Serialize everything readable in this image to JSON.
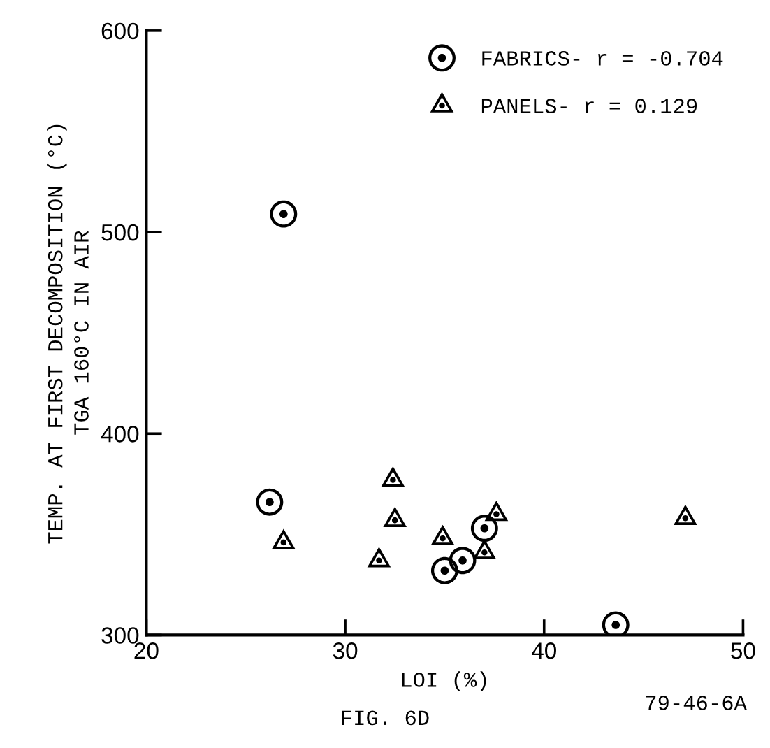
{
  "chart_data": {
    "type": "scatter",
    "xlabel": "LOI (%)",
    "ylabel": "TEMP. AT FIRST DECOMPOSITION (°C)\nTGA 160°C IN AIR",
    "annotations": [
      "FIG. 6D",
      "79-46-6A"
    ],
    "xlim": [
      20,
      50
    ],
    "xticks": [
      20,
      30,
      40,
      50
    ],
    "ylim": [
      300,
      600
    ],
    "yticks": [
      300,
      400,
      500,
      600
    ],
    "grid": false,
    "legend": "top right",
    "series": [
      {
        "name": "FABRICS- r = -0.704",
        "color": "#000000",
        "marker": "circle",
        "x": [
          26.2,
          26.9,
          37.0,
          35.9,
          35.0,
          43.6
        ],
        "values": [
          366,
          509,
          353,
          337,
          332,
          305
        ]
      },
      {
        "name": "PANELS- r = 0.129",
        "color": "#000000",
        "marker": "triangle",
        "x": [
          32.4,
          26.9,
          32.5,
          31.7,
          34.9,
          37.6,
          37.0,
          47.1
        ],
        "values": [
          377,
          346,
          357,
          337,
          348,
          360,
          341,
          358
        ]
      }
    ]
  }
}
